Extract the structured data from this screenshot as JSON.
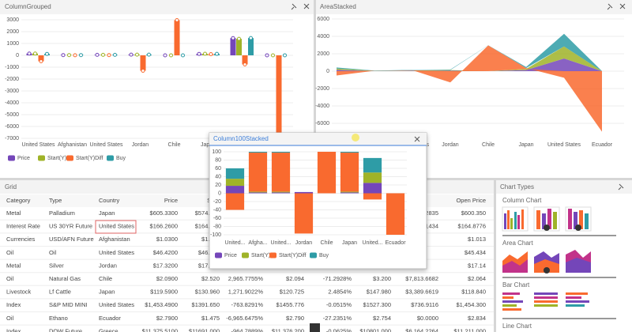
{
  "panels": {
    "column_grouped": {
      "title": "ColumnGrouped",
      "chart": {
        "type": "bar",
        "categories": [
          "United States",
          "Afghanistan",
          "United States",
          "Jordan",
          "Chile",
          "Japan",
          "United States",
          "Ecuador"
        ],
        "series": [
          {
            "name": "Price",
            "color": "#7446b9",
            "values": [
              150,
              20,
              40,
              60,
              2,
              120,
              1453,
              3
            ]
          },
          {
            "name": "Start(Y)",
            "color": "#9fb328",
            "values": [
              150,
              20,
              40,
              60,
              3,
              131,
              1392,
              1
            ]
          },
          {
            "name": "Start(Y)Diff",
            "color": "#f96a2f",
            "values": [
              -500,
              10,
              20,
              -1300,
              2966,
              100,
              -764,
              -6966
            ]
          },
          {
            "name": "Buy",
            "color": "#2e9ca6",
            "values": [
              120,
              20,
              40,
              60,
              2,
              121,
              1456,
              3
            ]
          }
        ],
        "ylim": [
          -7000,
          3000
        ],
        "yticks": [
          3000,
          2000,
          1000,
          0,
          -1000,
          -2000,
          -3000,
          -4000,
          -5000,
          -6000,
          -7000
        ],
        "grid": true
      }
    },
    "area_stacked": {
      "title": "AreaStacked",
      "chart": {
        "type": "area",
        "categories": [
          "United States",
          "Afghanistan",
          "United States",
          "Jordan",
          "Chile",
          "Japan",
          "United States",
          "Ecuador"
        ],
        "series": [
          {
            "name": "Price",
            "color": "#7446b9",
            "values": [
              150,
              20,
              40,
              60,
              2,
              120,
              1453,
              3
            ]
          },
          {
            "name": "Start(Y)",
            "color": "#9fb328",
            "values": [
              150,
              20,
              40,
              60,
              3,
              131,
              1392,
              1
            ]
          },
          {
            "name": "Start(Y)Diff",
            "color": "#f96a2f",
            "values": [
              -500,
              10,
              20,
              -1300,
              2966,
              100,
              -764,
              -6966
            ]
          },
          {
            "name": "Buy",
            "color": "#2e9ca6",
            "values": [
              120,
              20,
              40,
              60,
              2,
              121,
              1456,
              3
            ]
          }
        ],
        "ylim": [
          -6000,
          6000
        ],
        "yticks": [
          6000,
          4000,
          2000,
          0,
          -2000,
          -4000,
          -6000
        ],
        "grid": true
      }
    },
    "column_100_stacked": {
      "title": "Column100Stacked",
      "chart": {
        "type": "bar100",
        "categories": [
          "United...",
          "Afgha...",
          "United...",
          "Jordan",
          "Chile",
          "Japan",
          "United...",
          "Ecuador"
        ],
        "series": [
          {
            "name": "Price",
            "color": "#7446b9",
            "values": [
              18,
              2,
              2,
              3,
              0,
              2,
              25,
              0
            ]
          },
          {
            "name": "Start(Y)",
            "color": "#9fb328",
            "values": [
              17,
              2,
              2,
              0,
              0,
              2,
              25,
              0
            ]
          },
          {
            "name": "Start(Y)Diff",
            "color": "#f96a2f",
            "values": [
              -40,
              94,
              94,
              -97,
              100,
              94,
              -15,
              -100
            ]
          },
          {
            "name": "Buy",
            "color": "#2e9ca6",
            "values": [
              25,
              2,
              2,
              0,
              0,
              2,
              35,
              0
            ]
          }
        ],
        "ylim": [
          -100,
          100
        ],
        "yticks": [
          100,
          80,
          60,
          40,
          20,
          0,
          -20,
          -40,
          -60,
          -80,
          -100
        ],
        "grid": true
      }
    },
    "grid": {
      "tab": "Grid",
      "columns": [
        "Category",
        "Type",
        "Country",
        "Price",
        "Start",
        null,
        null,
        null,
        null,
        null,
        "Open Price"
      ],
      "rows": [
        [
          "Metal",
          "Palladium",
          "Japan",
          "$605.3300",
          "$574.460",
          null,
          null,
          null,
          null,
          "$2,962.2835",
          "$600.350"
        ],
        [
          "Interest Rate",
          "US 30YR Future",
          "United States",
          "$166.2600",
          "$164.620",
          null,
          null,
          null,
          null,
          "$4,821.1434",
          "$164.8776"
        ],
        [
          "Currencies",
          "USD/AFN Future",
          "Afghanistan",
          "$1.0300",
          "$1.000",
          null,
          null,
          null,
          null,
          null,
          "$1.013"
        ],
        [
          "Oil",
          "Oil",
          "United States",
          "$46.4200",
          "$46.480",
          null,
          null,
          null,
          null,
          null,
          "$45.434"
        ],
        [
          "Metal",
          "Silver",
          "Jordan",
          "$17.3200",
          "$17.260",
          null,
          null,
          null,
          null,
          null,
          "$17.14"
        ],
        [
          "Oil",
          "Natural Gas",
          "Chile",
          "$2.0900",
          "$2.520",
          "2,965.7755%",
          "$2.094",
          "-71.2928%",
          "$3.200",
          "$7,813.6682",
          "$2.064"
        ],
        [
          "Livestock",
          "Lf Cattle",
          "Japan",
          "$119.5900",
          "$130.960",
          "1,271.9022%",
          "$120.725",
          "2.4854%",
          "$147.980",
          "$3,389.6619",
          "$118.840"
        ],
        [
          "Index",
          "S&P MID MINI",
          "United States",
          "$1,453.4900",
          "$1391.650",
          "-763.8291%",
          "$1455.776",
          "-0.0515%",
          "$1527.300",
          "$736.9116",
          "$1,454.300"
        ],
        [
          "Oil",
          "Ethano",
          "Ecuador",
          "$2.7900",
          "$1.475",
          "-6,965.6475%",
          "$2.790",
          "-27.2351%",
          "$2.754",
          "$0.0000",
          "$2.834"
        ],
        [
          "Index",
          "DOW Future",
          "Greece",
          "$11,375.5100",
          "$11691.000",
          "-964.7889%",
          "$11,376.200",
          "-0.0625%",
          "$10801.000",
          "$6,164.2264",
          "$11,211.000"
        ]
      ]
    },
    "chart_types": {
      "title": "Chart Types",
      "sections": [
        "Column Chart",
        "Area Chart",
        "Bar Chart",
        "Line Chart"
      ]
    }
  }
}
